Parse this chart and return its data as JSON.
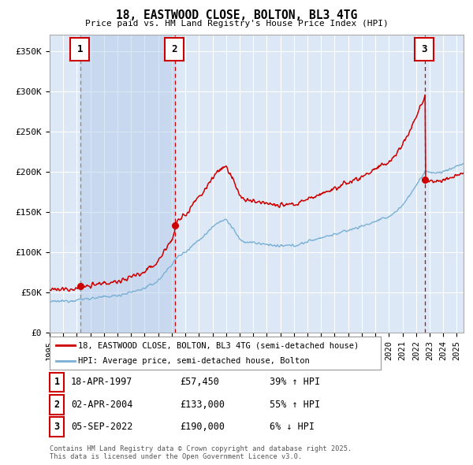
{
  "title": "18, EASTWOOD CLOSE, BOLTON, BL3 4TG",
  "subtitle": "Price paid vs. HM Land Registry's House Price Index (HPI)",
  "ylim": [
    0,
    370000
  ],
  "yticks": [
    0,
    50000,
    100000,
    150000,
    200000,
    250000,
    300000,
    350000
  ],
  "ytick_labels": [
    "£0",
    "£50K",
    "£100K",
    "£150K",
    "£200K",
    "£250K",
    "£300K",
    "£350K"
  ],
  "xlim_start": 1995.0,
  "xlim_end": 2025.5,
  "bg_color": "#dce8f5",
  "plot_bg": "#dce8f5",
  "grid_color": "#ffffff",
  "hpi_color": "#7ab0d4",
  "price_color": "#cc0000",
  "transactions": [
    {
      "label": "1",
      "date_year": 1997.29,
      "price": 57450
    },
    {
      "label": "2",
      "date_year": 2004.25,
      "price": 133000
    },
    {
      "label": "3",
      "date_year": 2022.67,
      "price": 190000
    }
  ],
  "legend_line1": "18, EASTWOOD CLOSE, BOLTON, BL3 4TG (semi-detached house)",
  "legend_line2": "HPI: Average price, semi-detached house, Bolton",
  "table_rows": [
    {
      "num": "1",
      "date": "18-APR-1997",
      "price": "£57,450",
      "pct": "39% ↑ HPI"
    },
    {
      "num": "2",
      "date": "02-APR-2004",
      "price": "£133,000",
      "pct": "55% ↑ HPI"
    },
    {
      "num": "3",
      "date": "05-SEP-2022",
      "price": "£190,000",
      "pct": "6% ↓ HPI"
    }
  ],
  "footer": "Contains HM Land Registry data © Crown copyright and database right 2025.\nThis data is licensed under the Open Government Licence v3.0."
}
